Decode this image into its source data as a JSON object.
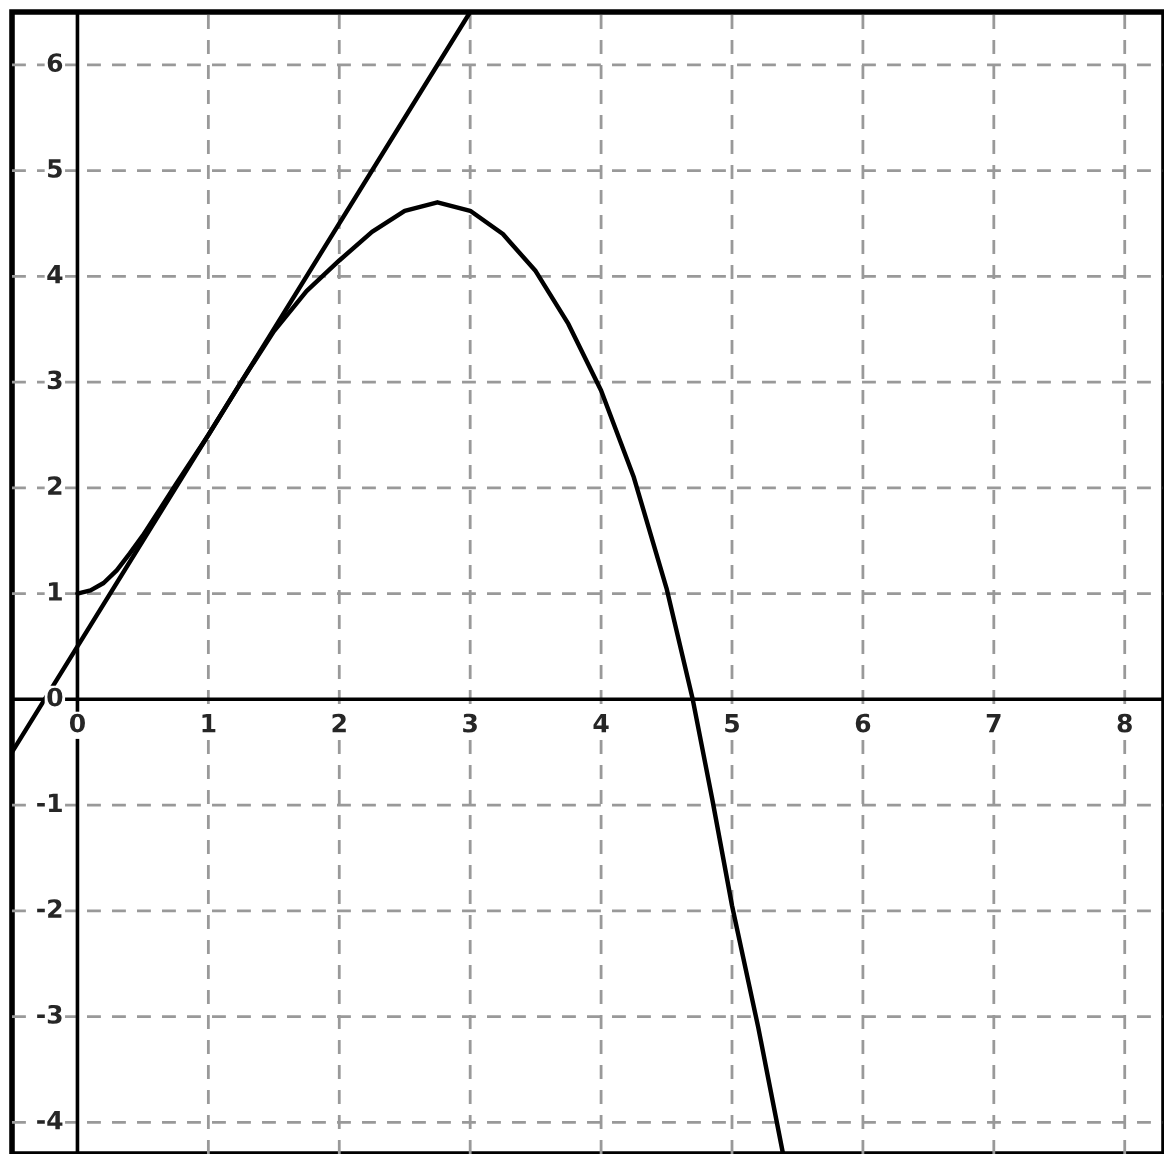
{
  "chart_data": {
    "type": "line",
    "series": [
      {
        "color": "#000000",
        "x": [
          0,
          0.1,
          0.2,
          0.3,
          0.4,
          0.5,
          0.6,
          0.75,
          1,
          1.25,
          1.5,
          1.75,
          2,
          2.25,
          2.5,
          2.75,
          3,
          3.25,
          3.5,
          3.75,
          4,
          4.25,
          4.5,
          4.7,
          4.85,
          5,
          5.2,
          5.39
        ],
        "values": [
          1,
          1.03,
          1.1,
          1.22,
          1.38,
          1.55,
          1.74,
          2.03,
          2.5,
          3.0,
          3.48,
          3.86,
          4.15,
          4.42,
          4.62,
          4.7,
          4.62,
          4.4,
          4.05,
          3.55,
          2.92,
          2.1,
          1.05,
          0,
          -0.95,
          -1.95,
          -3.1,
          -4.3
        ]
      },
      {
        "color": "#000000",
        "x": [
          -0.5,
          3
        ],
        "values": [
          -0.5,
          6.5
        ]
      }
    ],
    "xlim": [
      -0.5,
      8.3
    ],
    "xticks": [
      0,
      1,
      2,
      3,
      4,
      5,
      6,
      7,
      8
    ],
    "ylim": [
      -4.3,
      6.5
    ],
    "yticks": [
      -4,
      -3,
      -2,
      -1,
      0,
      1,
      2,
      3,
      4,
      5,
      6
    ],
    "grid": true,
    "legend": false
  }
}
